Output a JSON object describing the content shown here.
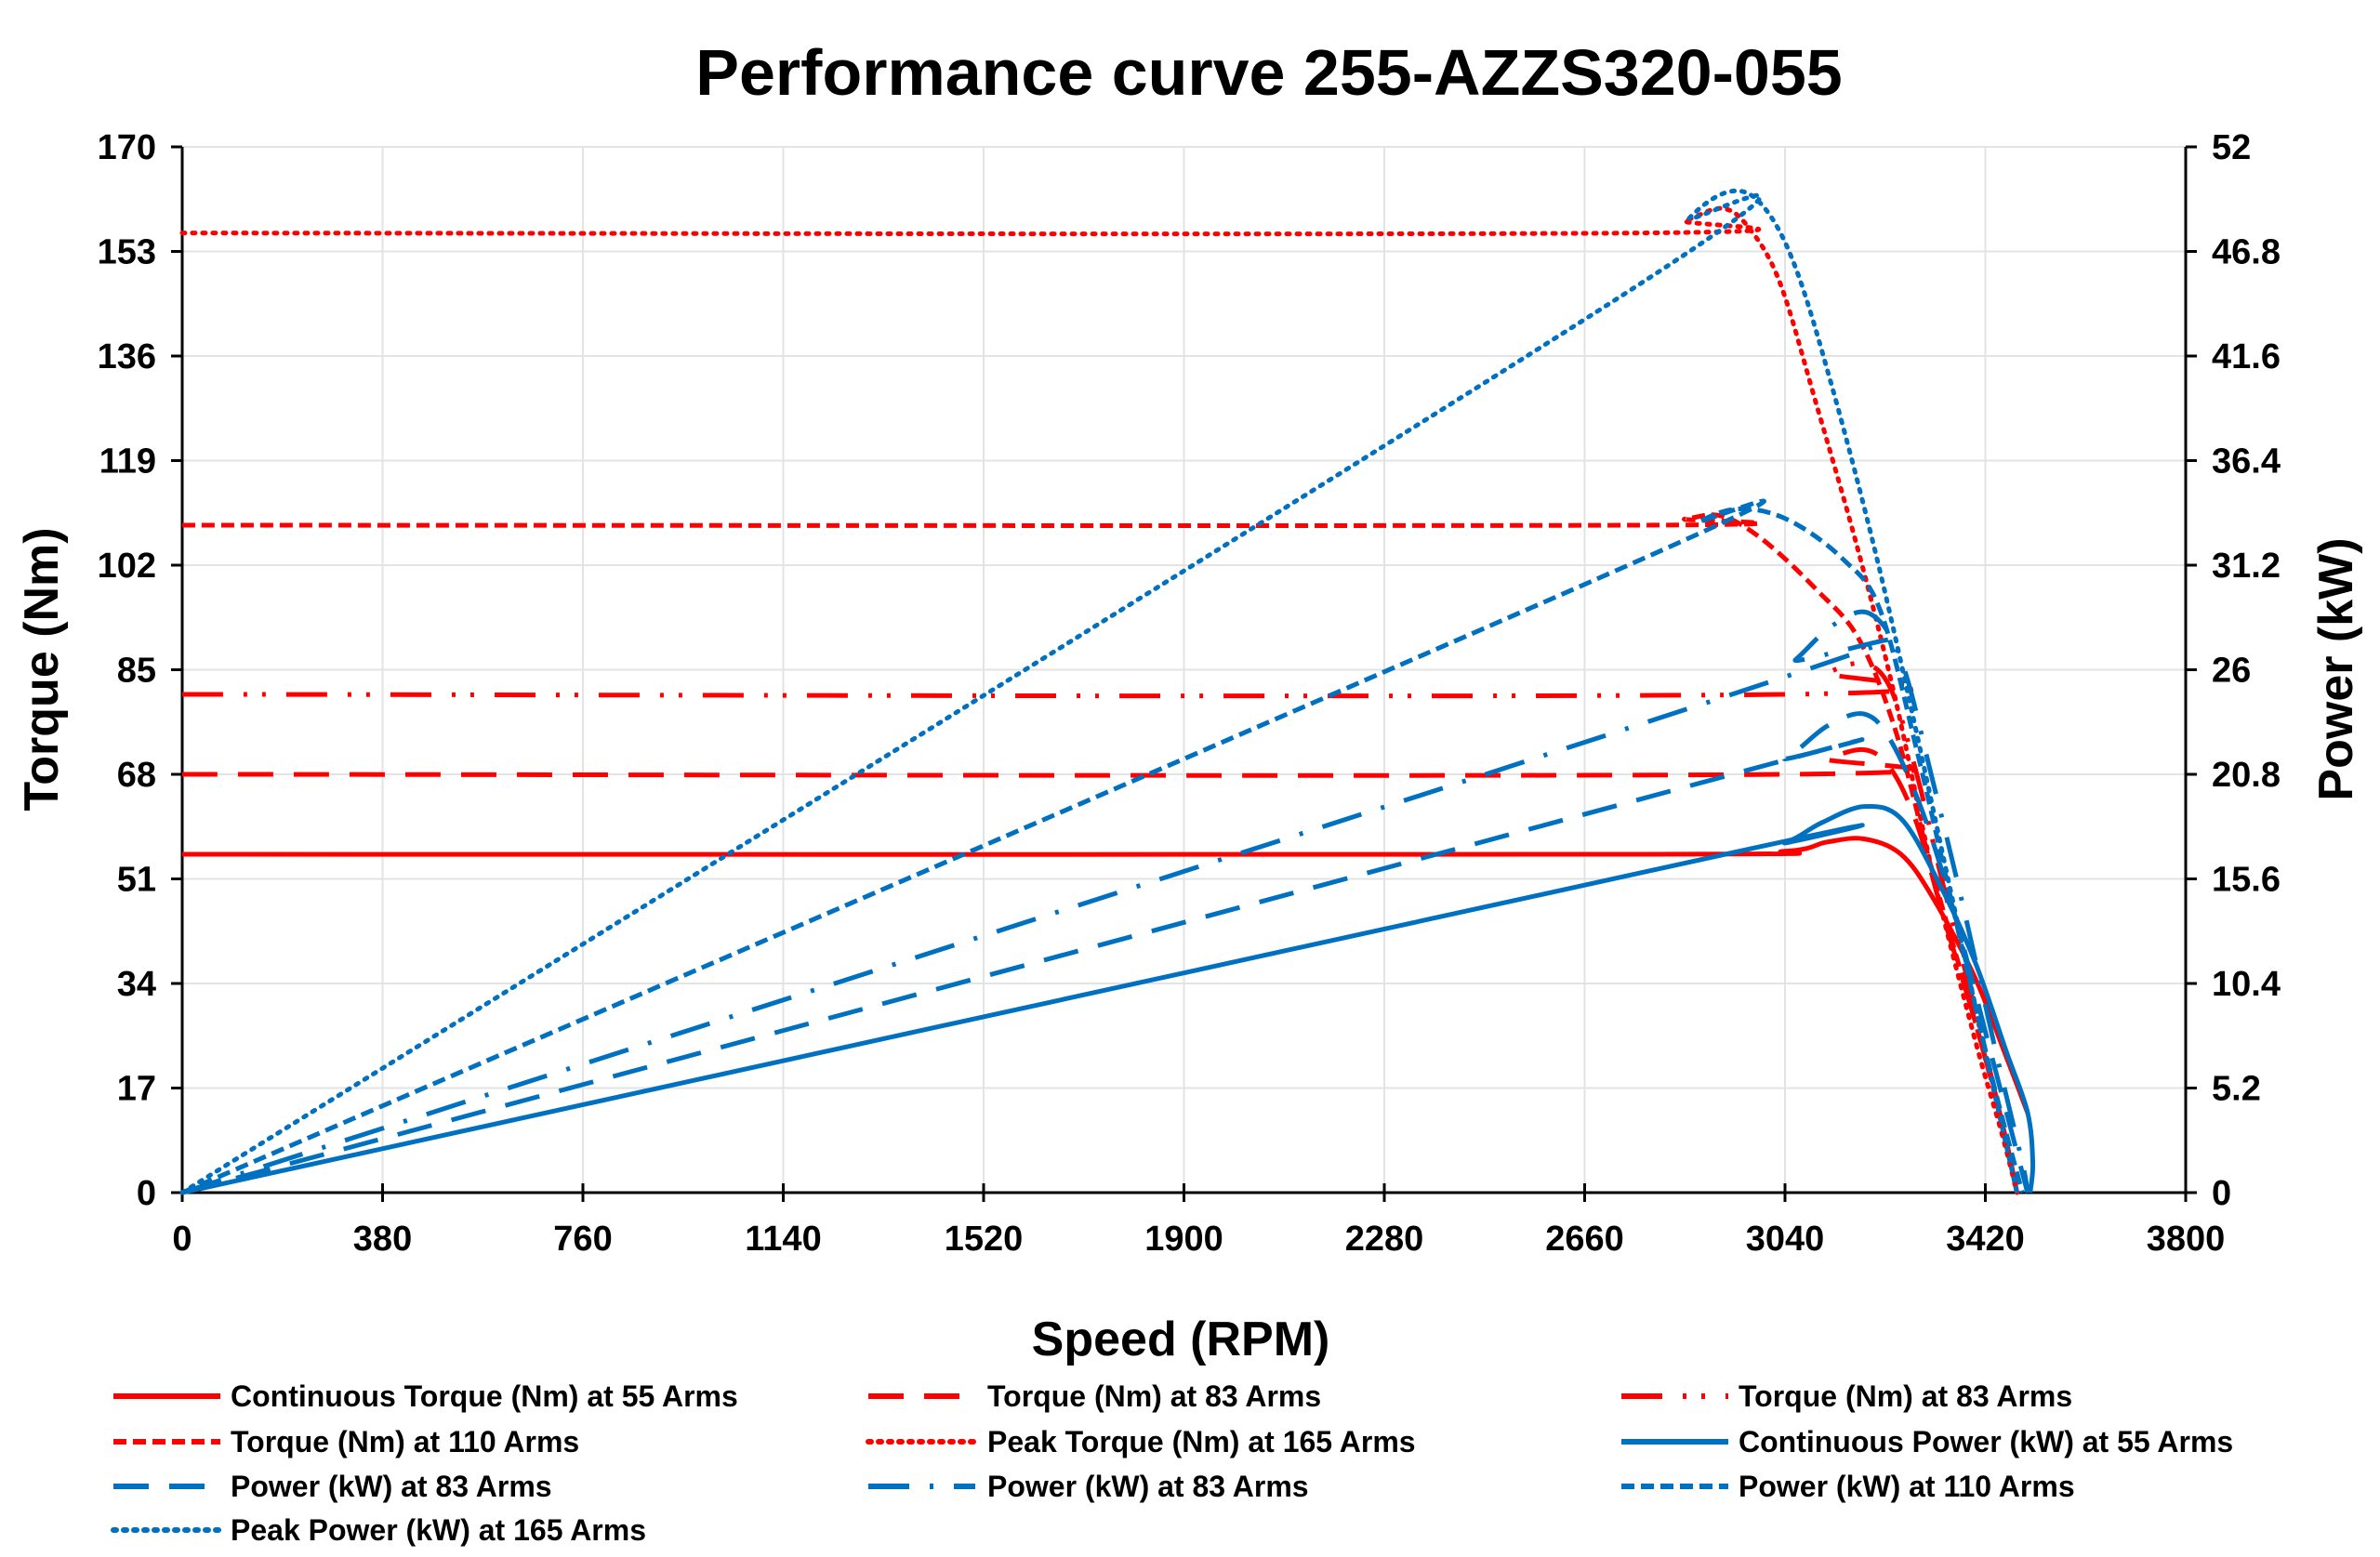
{
  "chart_data": {
    "type": "line",
    "title": "Performance curve 255-AZZS320-055",
    "xlabel": "Speed (RPM)",
    "ylabel": "Torque (Nm)",
    "y2label": "Power (kW)",
    "xlim": [
      0,
      3800
    ],
    "ylim": [
      0,
      170
    ],
    "y2lim": [
      0,
      52
    ],
    "x_ticks": [
      "0",
      "380",
      "760",
      "1140",
      "1520",
      "1900",
      "2280",
      "2660",
      "3040",
      "3420",
      "3800"
    ],
    "y_ticks": [
      "0",
      "17",
      "34",
      "51",
      "68",
      "85",
      "102",
      "119",
      "136",
      "153",
      "170"
    ],
    "y2_ticks": [
      "0",
      "5.2",
      "10.4",
      "15.6",
      "20.8",
      "26",
      "31.2",
      "36.4",
      "41.6",
      "46.8",
      "52"
    ],
    "grid": true,
    "legend_position": "bottom",
    "colors": {
      "torque": "#ff0000",
      "power": "#0070c0"
    },
    "series": [
      {
        "name": "Continuous Torque (Nm) at 55 Arms",
        "axis": "left",
        "color": "#ff0000",
        "style": "solid",
        "points": [
          [
            0,
            55
          ],
          [
            2760,
            55
          ],
          [
            3040,
            55.5
          ],
          [
            3120,
            57
          ],
          [
            3190,
            57.5
          ],
          [
            3260,
            55
          ],
          [
            3320,
            48
          ],
          [
            3400,
            35
          ],
          [
            3460,
            22
          ],
          [
            3500,
            13
          ]
        ]
      },
      {
        "name": "Torque (Nm) at 83 Arms",
        "axis": "left",
        "color": "#ff0000",
        "style": "long-dash",
        "points": [
          [
            0,
            68
          ],
          [
            3040,
            68
          ],
          [
            3120,
            70.5
          ],
          [
            3190,
            72
          ],
          [
            3240,
            69
          ],
          [
            3290,
            60
          ],
          [
            3340,
            45
          ],
          [
            3400,
            28
          ],
          [
            3450,
            12
          ],
          [
            3480,
            0
          ]
        ]
      },
      {
        "name": "Torque (Nm) at 83 Arms",
        "axis": "left",
        "color": "#ff0000",
        "style": "long-dash-dot-dot",
        "points": [
          [
            0,
            81
          ],
          [
            3040,
            81
          ],
          [
            3120,
            84.5
          ],
          [
            3190,
            86
          ],
          [
            3240,
            82
          ],
          [
            3290,
            68
          ],
          [
            3340,
            50
          ],
          [
            3400,
            30
          ],
          [
            3450,
            12
          ],
          [
            3480,
            0
          ]
        ]
      },
      {
        "name": "Torque (Nm) at 110 Arms",
        "axis": "left",
        "color": "#ff0000",
        "style": "dash",
        "points": [
          [
            0,
            108.5
          ],
          [
            2760,
            108.5
          ],
          [
            2850,
            109.5
          ],
          [
            2920,
            110
          ],
          [
            3000,
            106
          ],
          [
            3100,
            98
          ],
          [
            3180,
            90
          ],
          [
            3250,
            75
          ],
          [
            3320,
            52
          ],
          [
            3400,
            28
          ],
          [
            3450,
            12
          ],
          [
            3480,
            0
          ]
        ]
      },
      {
        "name": "Peak Torque (Nm) at 165 Arms",
        "axis": "left",
        "color": "#ff0000",
        "style": "dot",
        "points": [
          [
            0,
            156
          ],
          [
            2760,
            156
          ],
          [
            2850,
            158
          ],
          [
            2920,
            160
          ],
          [
            2970,
            157
          ],
          [
            3030,
            148
          ],
          [
            3100,
            128
          ],
          [
            3180,
            104
          ],
          [
            3250,
            80
          ],
          [
            3320,
            52
          ],
          [
            3400,
            25
          ],
          [
            3450,
            10
          ],
          [
            3480,
            0
          ]
        ]
      },
      {
        "name": "Continuous Power (kW) at 55 Arms",
        "axis": "right",
        "color": "#0070c0",
        "style": "solid",
        "points": [
          [
            0,
            0
          ],
          [
            2940,
            16.9
          ],
          [
            3040,
            17.4
          ],
          [
            3110,
            18.4
          ],
          [
            3190,
            19.2
          ],
          [
            3260,
            18.6
          ],
          [
            3330,
            15.5
          ],
          [
            3400,
            11.5
          ],
          [
            3460,
            7
          ],
          [
            3500,
            4
          ],
          [
            3510,
            1.5
          ],
          [
            3505,
            0
          ]
        ]
      },
      {
        "name": "Power (kW) at 83 Arms",
        "axis": "right",
        "color": "#0070c0",
        "style": "long-dash",
        "points": [
          [
            0,
            0
          ],
          [
            2940,
            20.8
          ],
          [
            3040,
            21.6
          ],
          [
            3120,
            23.2
          ],
          [
            3190,
            23.8
          ],
          [
            3240,
            22.5
          ],
          [
            3300,
            19
          ],
          [
            3360,
            14
          ],
          [
            3420,
            8
          ],
          [
            3470,
            3
          ],
          [
            3500,
            0
          ]
        ]
      },
      {
        "name": "Power (kW) at 83 Arms",
        "axis": "right",
        "color": "#0070c0",
        "style": "long-dash-dot",
        "points": [
          [
            0,
            0
          ],
          [
            3000,
            25.3
          ],
          [
            3060,
            26.5
          ],
          [
            3130,
            28.2
          ],
          [
            3200,
            28.8
          ],
          [
            3260,
            26.5
          ],
          [
            3320,
            20.5
          ],
          [
            3380,
            14
          ],
          [
            3440,
            7
          ],
          [
            3490,
            1.5
          ],
          [
            3500,
            0
          ]
        ]
      },
      {
        "name": "Power (kW) at 110 Arms",
        "axis": "right",
        "color": "#0070c0",
        "style": "dash",
        "points": [
          [
            0,
            0
          ],
          [
            2760,
            31.4
          ],
          [
            2880,
            33.4
          ],
          [
            2960,
            34
          ],
          [
            3050,
            33.4
          ],
          [
            3150,
            31.5
          ],
          [
            3220,
            29
          ],
          [
            3290,
            22
          ],
          [
            3360,
            14
          ],
          [
            3430,
            6
          ],
          [
            3490,
            0
          ]
        ]
      },
      {
        "name": "Peak Power (kW) at 165 Arms",
        "axis": "right",
        "color": "#0070c0",
        "style": "dot",
        "points": [
          [
            0,
            0
          ],
          [
            2760,
            45.1
          ],
          [
            2860,
            48.5
          ],
          [
            2940,
            49.8
          ],
          [
            3000,
            49
          ],
          [
            3060,
            46
          ],
          [
            3130,
            40
          ],
          [
            3210,
            32
          ],
          [
            3280,
            24
          ],
          [
            3350,
            15.5
          ],
          [
            3420,
            7
          ],
          [
            3480,
            0
          ]
        ]
      }
    ]
  }
}
